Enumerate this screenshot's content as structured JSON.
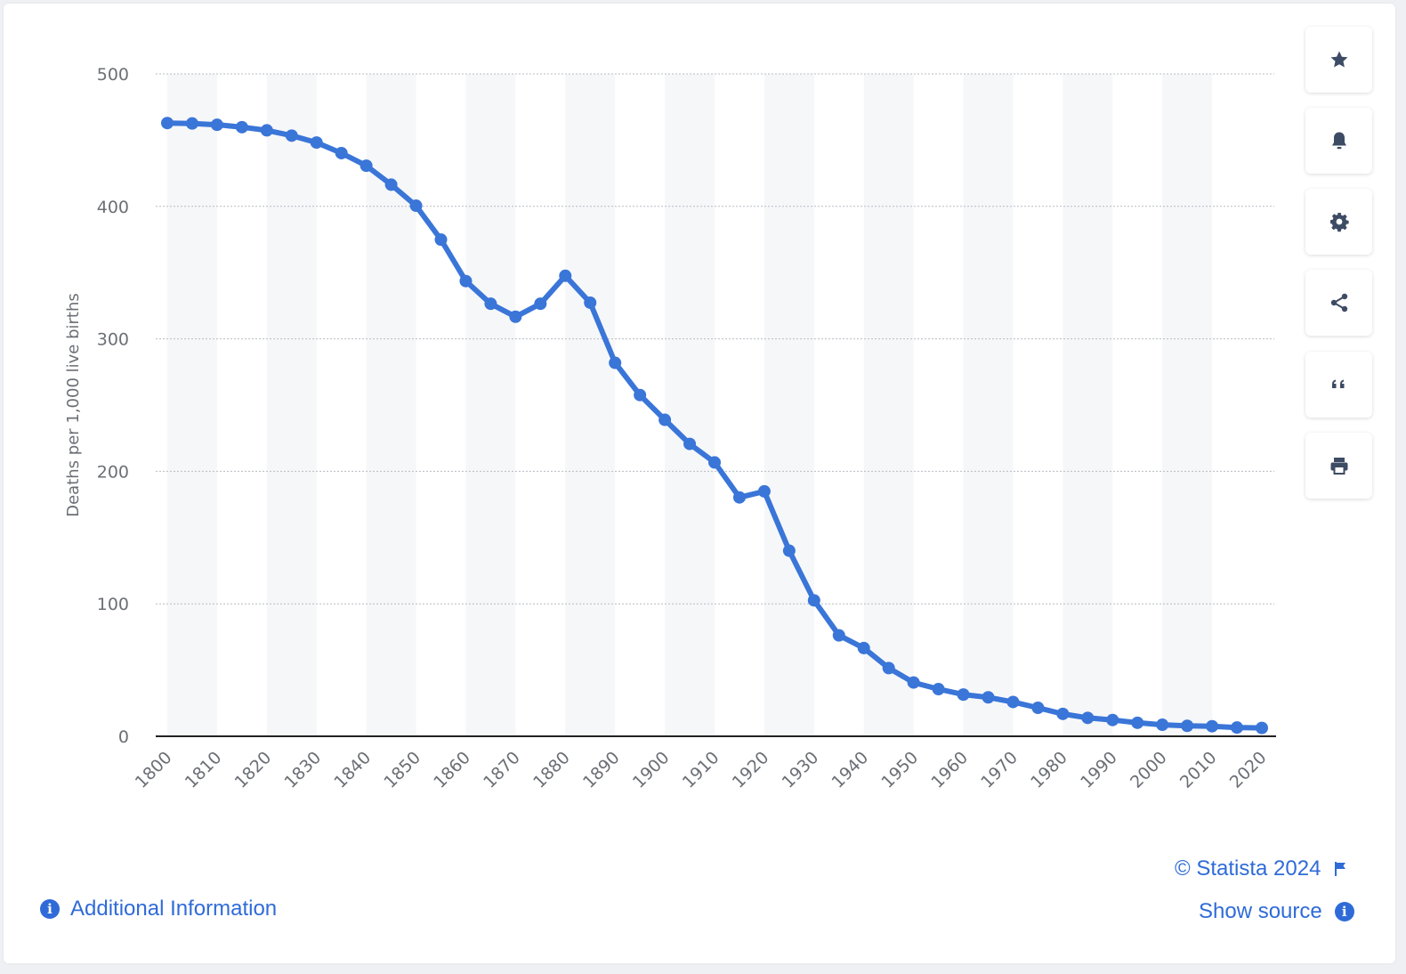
{
  "chart_data": {
    "type": "line",
    "ylabel": "Deaths per 1,000 live births",
    "xlabel": "",
    "ylim": [
      0,
      500
    ],
    "yticks": [
      0,
      100,
      200,
      300,
      400,
      500
    ],
    "xticks": [
      1800,
      1810,
      1820,
      1830,
      1840,
      1850,
      1860,
      1870,
      1880,
      1890,
      1900,
      1910,
      1920,
      1930,
      1940,
      1950,
      1960,
      1970,
      1980,
      1990,
      2000,
      2010,
      2020
    ],
    "xlim": [
      1800,
      2020
    ],
    "grid": "horizontal dotted",
    "legend": "none",
    "color": "#3a75d8",
    "series": [
      {
        "x": [
          1800,
          1805,
          1810,
          1815,
          1820,
          1825,
          1830,
          1835,
          1840,
          1845,
          1850,
          1855,
          1860,
          1865,
          1870,
          1875,
          1880,
          1885,
          1890,
          1895,
          1900,
          1905,
          1910,
          1915,
          1920,
          1925,
          1930,
          1935,
          1940,
          1945,
          1950,
          1955,
          1960,
          1965,
          1970,
          1975,
          1980,
          1985,
          1990,
          1995,
          2000,
          2005,
          2010,
          2015,
          2020
        ],
        "values": [
          462.9,
          462.6,
          461.6,
          459.8,
          457.4,
          453.4,
          448.2,
          440.2,
          430.7,
          416.4,
          400.5,
          374.9,
          343.6,
          326.5,
          316.7,
          326.5,
          347.6,
          327.3,
          281.9,
          257.6,
          238.9,
          220.7,
          206.7,
          180.3,
          184.9,
          140.1,
          102.6,
          76.2,
          66.6,
          51.5,
          40.6,
          35.6,
          31.5,
          29.4,
          25.9,
          21.5,
          16.9,
          13.9,
          12.3,
          10.2,
          8.7,
          7.9,
          7.6,
          6.6,
          6.3
        ]
      }
    ]
  },
  "toolbar": {
    "icons": [
      "star-icon",
      "bell-icon",
      "gear-icon",
      "share-icon",
      "quote-icon",
      "print-icon"
    ]
  },
  "footer": {
    "copyright": "© Statista 2024",
    "show_source": "Show source",
    "additional_info": "Additional Information"
  },
  "colors": {
    "accent": "#2f6bd8",
    "line": "#3a75d8",
    "icon": "#3d4b64"
  }
}
